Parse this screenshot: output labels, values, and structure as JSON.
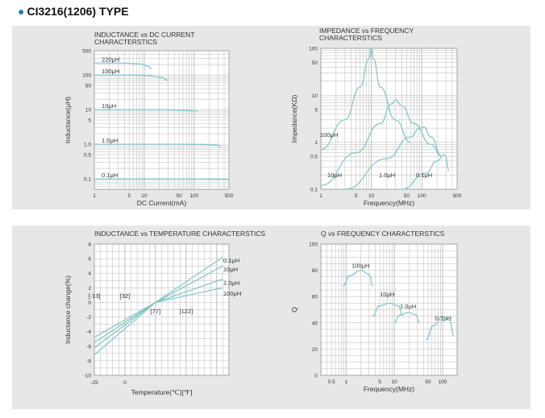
{
  "page_title": "CI3216(1206) TYPE",
  "colors": {
    "curve": "#7fc4c8",
    "grid": "#b8b8b8",
    "plot_bg": "#ffffff",
    "panel_bg": "#e6e7e8",
    "bullet": "#1a7fc0"
  },
  "chart_data": [
    {
      "type": "line",
      "title": "INDUCTANCE vs DC CURRENT CHARACTERSTICS",
      "xlabel": "DC Current(mA)",
      "ylabel": "Inductance(μH)",
      "x_scale": "log",
      "y_scale": "log",
      "xlim": [
        1,
        500
      ],
      "ylim": [
        0.05,
        500
      ],
      "x_ticks": [
        "1",
        "5",
        "10",
        "50",
        "100",
        "500"
      ],
      "y_ticks": [
        "500",
        "100",
        "50",
        "10",
        "5",
        "1.0",
        "0.5",
        "0.1"
      ],
      "grid": true,
      "series": [
        {
          "name": "220μH",
          "x": [
            1,
            4,
            8,
            12,
            14
          ],
          "y": [
            220,
            220,
            210,
            180,
            150
          ]
        },
        {
          "name": "100μH",
          "x": [
            1,
            6,
            12,
            22,
            30
          ],
          "y": [
            100,
            100,
            96,
            85,
            70
          ]
        },
        {
          "name": "10μH",
          "x": [
            1,
            20,
            60,
            120
          ],
          "y": [
            10,
            10,
            9.6,
            9
          ]
        },
        {
          "name": "1.0μH",
          "x": [
            1,
            50,
            150,
            300,
            350
          ],
          "y": [
            1,
            1,
            0.98,
            0.93,
            0.85
          ]
        },
        {
          "name": "0.1μH",
          "x": [
            1,
            100,
            350,
            500
          ],
          "y": [
            0.1,
            0.1,
            0.098,
            0.097
          ]
        }
      ]
    },
    {
      "type": "line",
      "title": "IMPEDANCE vs FREQUENCY CHARACTERSTICS",
      "xlabel": "Frequency(MHz)",
      "ylabel": "Impedance(KΩ)",
      "x_scale": "log",
      "y_scale": "log",
      "xlim": [
        1,
        500
      ],
      "ylim": [
        0.1,
        100
      ],
      "x_ticks": [
        "1",
        "5",
        "10",
        "50",
        "100",
        "500"
      ],
      "y_ticks": [
        "100",
        "50",
        "10",
        "5",
        "1",
        "0.5",
        "0.1"
      ],
      "grid": true,
      "series": [
        {
          "name": "100μH",
          "x": [
            1,
            3,
            6,
            9,
            10,
            11,
            15,
            30,
            60
          ],
          "y": [
            0.7,
            3,
            15,
            60,
            100,
            60,
            15,
            3,
            1
          ]
        },
        {
          "name": "10μH",
          "x": [
            1,
            5,
            15,
            25,
            30,
            40,
            70,
            150,
            250
          ],
          "y": [
            0.12,
            0.6,
            2.5,
            6.5,
            8,
            6,
            2.5,
            0.9,
            0.5
          ]
        },
        {
          "name": "1.0μH",
          "x": [
            3,
            20,
            60,
            90,
            110,
            150,
            250
          ],
          "y": [
            0.1,
            0.45,
            1.3,
            2,
            2.1,
            1.3,
            0.5
          ]
        },
        {
          "name": "0.1μH",
          "x": [
            40,
            120,
            200,
            280,
            350
          ],
          "y": [
            0.1,
            0.22,
            0.4,
            0.55,
            0.25
          ]
        }
      ],
      "annotations": [
        "100μH",
        "10μH",
        "1.0μH",
        "0.1μH"
      ]
    },
    {
      "type": "line",
      "title": "INDUCTANCE vs TEMPERATURE CHARACTERSTICS",
      "xlabel": "Temperature(℃)[℉]",
      "ylabel": "Inductance change(%)",
      "xlim": [
        -25,
        85
      ],
      "ylim": [
        -10,
        8
      ],
      "x_ticks": [
        "-25",
        "0"
      ],
      "x_ticks_f": [
        "[-13]",
        "[32]",
        "[77]",
        "[122]"
      ],
      "y_ticks": [
        "8",
        "6",
        "4",
        "2",
        "0",
        "-2",
        "-4",
        "-6",
        "-8",
        "-10"
      ],
      "grid": true,
      "series": [
        {
          "name": "0.1μH",
          "x": [
            -25,
            25,
            80
          ],
          "y": [
            -7.2,
            0,
            6.2
          ]
        },
        {
          "name": "10μH",
          "x": [
            -25,
            25,
            80
          ],
          "y": [
            -6.2,
            0,
            5
          ]
        },
        {
          "name": "1.0μH",
          "x": [
            -25,
            25,
            80
          ],
          "y": [
            -5.5,
            0,
            3.2
          ]
        },
        {
          "name": "100μH",
          "x": [
            -25,
            25,
            80
          ],
          "y": [
            -4.8,
            0,
            2
          ]
        }
      ]
    },
    {
      "type": "line",
      "title": "Q vs FREQUENCY CHARACTERSTICS",
      "xlabel": "Frequency(MHz)",
      "ylabel": "Q",
      "x_scale": "log",
      "xlim": [
        0.3,
        200
      ],
      "ylim": [
        0,
        100
      ],
      "x_ticks": [
        "0.5",
        "1",
        "5",
        "10",
        "50",
        "100"
      ],
      "y_ticks": [
        "100",
        "80",
        "60",
        "40",
        "20",
        "0"
      ],
      "grid": true,
      "series": [
        {
          "name": "100μH",
          "x": [
            0.85,
            1.2,
            2,
            3,
            3.6
          ],
          "y": [
            68,
            76,
            80,
            77,
            68
          ]
        },
        {
          "name": "10μH",
          "x": [
            3.5,
            5,
            8,
            12,
            15
          ],
          "y": [
            45,
            53,
            55,
            53,
            45
          ]
        },
        {
          "name": "1.0μH",
          "x": [
            10,
            13,
            20,
            28,
            33
          ],
          "y": [
            40,
            46,
            48,
            46,
            40
          ]
        },
        {
          "name": "0.1μH",
          "x": [
            45,
            65,
            100,
            140,
            170
          ],
          "y": [
            27,
            38,
            45,
            42,
            30
          ]
        }
      ]
    }
  ]
}
